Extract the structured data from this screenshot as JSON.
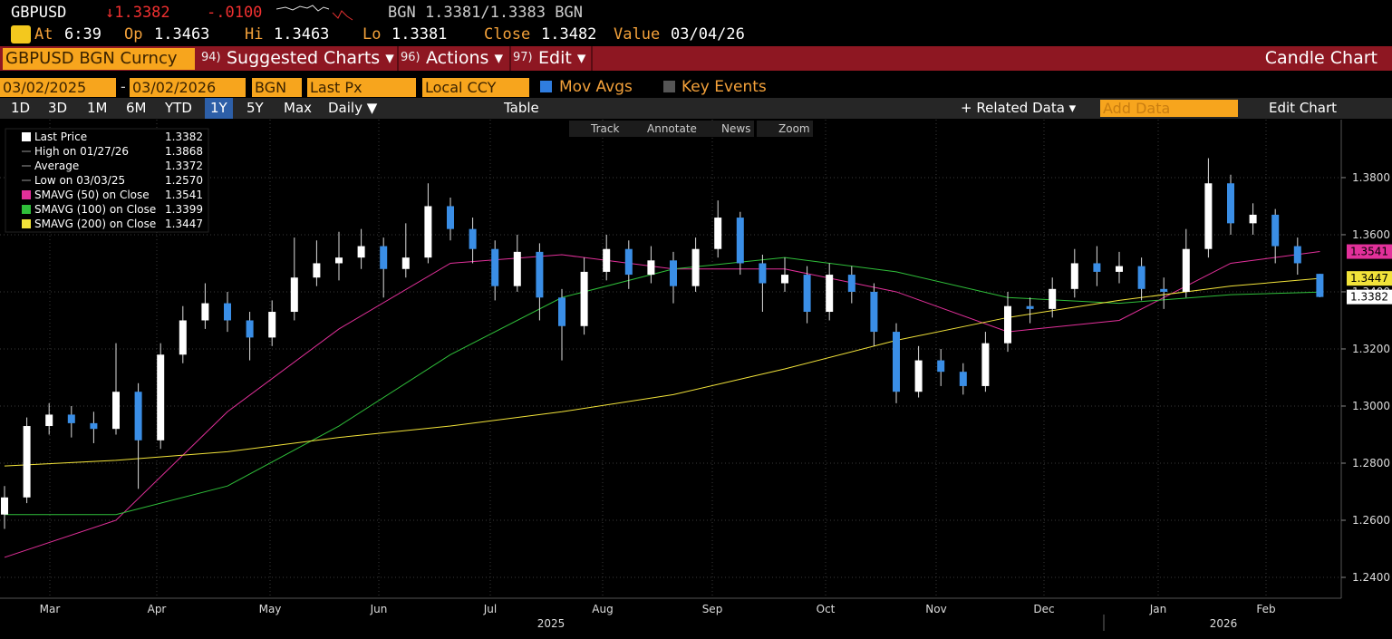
{
  "header": {
    "ticker": "GBPUSD",
    "last": "↓1.3382",
    "change": "-.0100",
    "quote": "BGN 1.3381/1.3383 BGN",
    "at_label": "At",
    "time": "6:39",
    "open_label": "Op",
    "open": "1.3463",
    "high_label": "Hi",
    "high": "1.3463",
    "low_label": "Lo",
    "low": "1.3381",
    "close_label": "Close",
    "close": "1.3482",
    "value_label": "Value",
    "value_date": "03/04/26"
  },
  "menu": {
    "security": "GBPUSD BGN Curncy",
    "items": [
      {
        "num": "94)",
        "label": "Suggested Charts ▾"
      },
      {
        "num": "96)",
        "label": "Actions ▾"
      },
      {
        "num": "97)",
        "label": "Edit ▾"
      }
    ],
    "title": "Candle Chart"
  },
  "settings": {
    "start": "03/02/2025",
    "end": "03/02/2026",
    "source": "BGN",
    "field": "Last Px",
    "currency": "Local CCY",
    "mov_avgs": "Mov Avgs",
    "key_events": "Key Events"
  },
  "toolbar": {
    "ranges": [
      "1D",
      "3D",
      "1M",
      "6M",
      "YTD",
      "1Y",
      "5Y",
      "Max"
    ],
    "selected": "1Y",
    "period": "Daily ▼",
    "table": "Table",
    "related": "+ Related Data ▾",
    "add_data": "Add Data",
    "edit_chart": "Edit Chart"
  },
  "chart_tools": [
    "Track",
    "Annotate",
    "News",
    "Zoom"
  ],
  "legend": [
    {
      "label": "Last Price",
      "value": 1.3382
    },
    {
      "label": "High on 01/27/26",
      "value": 1.3868
    },
    {
      "label": "Average",
      "value": 1.3372
    },
    {
      "label": "Low on 03/03/25",
      "value": {
        "value": 1.257,
        "label": "1.2570"
      }
    },
    {
      "label": "SMAVG (50)  on Close",
      "value": 1.3541
    },
    {
      "label": "SMAVG (100)  on Close",
      "value": 1.3399
    },
    {
      "label": "SMAVG (200)  on Close",
      "value": 1.3447
    }
  ],
  "chart": {
    "type": "candlestick",
    "ylim": [
      1.2327,
      1.4003
    ],
    "yticks": [
      {
        "value": 1.24,
        "label": "1.2400"
      },
      {
        "value": 1.26,
        "label": "1.2600"
      },
      {
        "value": 1.28,
        "label": "1.2800"
      },
      {
        "value": 1.3,
        "label": "1.3000"
      },
      {
        "value": 1.32,
        "label": "1.3200"
      },
      {
        "value": 1.34,
        "label": "1.3400"
      },
      {
        "value": 1.36,
        "label": "1.3600"
      },
      {
        "value": 1.38,
        "label": "1.3800"
      }
    ],
    "months": [
      "Mar",
      "Apr",
      "May",
      "Jun",
      "Jul",
      "Aug",
      "Sep",
      "Oct",
      "Nov",
      "Dec",
      "Jan",
      "Feb"
    ],
    "years": [
      "2025",
      "2026"
    ],
    "up_color": "#ffffff",
    "down_color": "#3a8ee6",
    "ohlc": [
      [
        1.262,
        1.272,
        1.257,
        1.268
      ],
      [
        1.268,
        1.296,
        1.266,
        1.293
      ],
      [
        1.293,
        1.301,
        1.29,
        1.297
      ],
      [
        1.297,
        1.3,
        1.289,
        1.294
      ],
      [
        1.294,
        1.298,
        1.287,
        1.292
      ],
      [
        1.292,
        1.322,
        1.29,
        1.305
      ],
      [
        1.305,
        1.308,
        1.271,
        1.288
      ],
      [
        1.288,
        1.322,
        1.285,
        1.318
      ],
      [
        1.318,
        1.335,
        1.315,
        1.33
      ],
      [
        1.33,
        1.343,
        1.327,
        1.336
      ],
      [
        1.336,
        1.34,
        1.326,
        1.33
      ],
      [
        1.33,
        1.333,
        1.316,
        1.324
      ],
      [
        1.324,
        1.337,
        1.321,
        1.333
      ],
      [
        1.333,
        1.359,
        1.33,
        1.345
      ],
      [
        1.345,
        1.358,
        1.342,
        1.35
      ],
      [
        1.35,
        1.361,
        1.344,
        1.352
      ],
      [
        1.352,
        1.362,
        1.348,
        1.356
      ],
      [
        1.356,
        1.359,
        1.338,
        1.348
      ],
      [
        1.348,
        1.364,
        1.345,
        1.352
      ],
      [
        1.352,
        1.378,
        1.35,
        1.37
      ],
      [
        1.37,
        1.373,
        1.358,
        1.362
      ],
      [
        1.362,
        1.366,
        1.35,
        1.355
      ],
      [
        1.355,
        1.358,
        1.337,
        1.342
      ],
      [
        1.342,
        1.36,
        1.34,
        1.354
      ],
      [
        1.354,
        1.357,
        1.33,
        1.338
      ],
      [
        1.338,
        1.341,
        1.316,
        1.328
      ],
      [
        1.328,
        1.352,
        1.325,
        1.347
      ],
      [
        1.347,
        1.36,
        1.344,
        1.355
      ],
      [
        1.355,
        1.358,
        1.341,
        1.346
      ],
      [
        1.346,
        1.356,
        1.343,
        1.351
      ],
      [
        1.351,
        1.354,
        1.336,
        1.342
      ],
      [
        1.342,
        1.359,
        1.34,
        1.355
      ],
      [
        1.355,
        1.372,
        1.352,
        1.366
      ],
      [
        1.366,
        1.368,
        1.346,
        1.35
      ],
      [
        1.35,
        1.353,
        1.333,
        1.343
      ],
      [
        1.343,
        1.352,
        1.34,
        1.346
      ],
      [
        1.346,
        1.349,
        1.329,
        1.333
      ],
      [
        1.333,
        1.35,
        1.33,
        1.346
      ],
      [
        1.346,
        1.349,
        1.336,
        1.34
      ],
      [
        1.34,
        1.343,
        1.321,
        1.326
      ],
      [
        1.326,
        1.329,
        1.301,
        1.305
      ],
      [
        1.305,
        1.321,
        1.303,
        1.316
      ],
      [
        1.316,
        1.32,
        1.307,
        1.312
      ],
      [
        1.312,
        1.315,
        1.304,
        1.307
      ],
      [
        1.307,
        1.326,
        1.305,
        1.322
      ],
      [
        1.322,
        1.34,
        1.319,
        1.335
      ],
      [
        1.335,
        1.338,
        1.329,
        1.334
      ],
      [
        1.334,
        1.345,
        1.331,
        1.341
      ],
      [
        1.341,
        1.355,
        1.338,
        1.35
      ],
      [
        1.35,
        1.356,
        1.342,
        1.347
      ],
      [
        1.347,
        1.354,
        1.343,
        1.349
      ],
      [
        1.349,
        1.352,
        1.337,
        1.341
      ],
      [
        1.341,
        1.345,
        1.334,
        1.34
      ],
      [
        1.34,
        1.362,
        1.338,
        1.355
      ],
      [
        1.355,
        1.3868,
        1.352,
        1.378
      ],
      [
        1.378,
        1.381,
        1.36,
        1.364
      ],
      [
        1.364,
        1.371,
        1.36,
        1.367
      ],
      [
        1.367,
        1.369,
        1.35,
        1.356
      ],
      [
        1.356,
        1.359,
        1.346,
        1.35
      ],
      [
        1.3463,
        1.3463,
        1.3381,
        1.3382
      ]
    ],
    "series": [
      {
        "name": "SMAVG (50)",
        "color": "#e2309a",
        "x": [
          0,
          5,
          10,
          15,
          20,
          25,
          30,
          35,
          40,
          45,
          50,
          55,
          59
        ],
        "values": [
          1.247,
          1.26,
          1.298,
          1.327,
          1.35,
          1.353,
          1.348,
          1.348,
          1.34,
          1.326,
          1.33,
          1.35,
          1.3541
        ]
      },
      {
        "name": "SMAVG (100)",
        "color": "#2fbf3a",
        "x": [
          0,
          5,
          10,
          15,
          20,
          25,
          30,
          35,
          40,
          45,
          50,
          55,
          59
        ],
        "values": [
          1.262,
          1.262,
          1.272,
          1.293,
          1.318,
          1.338,
          1.348,
          1.352,
          1.347,
          1.338,
          1.336,
          1.339,
          1.3399
        ]
      },
      {
        "name": "SMAVG (200)",
        "color": "#f2e33a",
        "x": [
          0,
          5,
          10,
          15,
          20,
          25,
          30,
          35,
          40,
          45,
          50,
          55,
          59
        ],
        "values": [
          1.279,
          1.281,
          1.284,
          1.289,
          1.293,
          1.298,
          1.304,
          1.313,
          1.323,
          1.331,
          1.337,
          1.342,
          1.3447
        ]
      }
    ]
  }
}
